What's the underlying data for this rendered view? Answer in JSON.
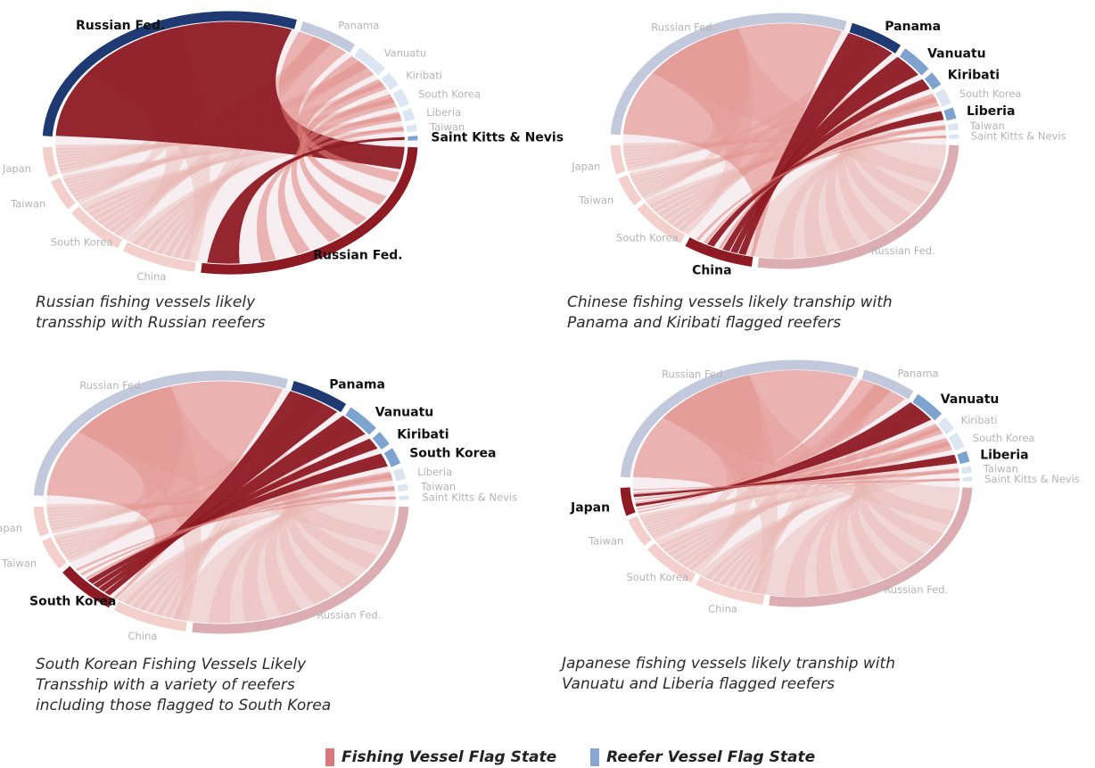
{
  "colors": {
    "fishing_active": "#8e1a24",
    "fishing_muted": "#dcaeb3",
    "reefer_active": "#1f3a73",
    "reefer_muted": "#c2c9dd",
    "reefer_small_active": "#7ea3cf",
    "reefer_small_muted": "#dbe6f2",
    "fishing_small_muted": "#f3d0cc",
    "label_active": "#111111",
    "label_muted": "#b4b4b4",
    "legend_fishing": "#d9777c",
    "legend_reefer": "#8aa6d3"
  },
  "chart_data": [
    {
      "type": "chord",
      "caption": "Russian fishing vessels likely\ntransship with Russian reefers",
      "reefer_flags": [
        "Russian Fed.",
        "Panama",
        "Vanuatu",
        "Kiribati",
        "South Korea",
        "Liberia",
        "Taiwan",
        "Saint Kitts & Nevis"
      ],
      "fishing_flags": [
        "Russian Fed.",
        "China",
        "South Korea",
        "Taiwan",
        "Japan"
      ],
      "highlighted_reefers": [
        "Russian Fed.",
        "Saint Kitts & Nevis"
      ],
      "highlighted_fishing": "Russian Fed."
    },
    {
      "type": "chord",
      "caption": "Chinese fishing vessels likely tranship with\nPanama and Kiribati flagged reefers",
      "reefer_flags": [
        "Russian Fed.",
        "Panama",
        "Vanuatu",
        "Kiribati",
        "South Korea",
        "Liberia",
        "Taiwan",
        "Saint Kitts & Nevis"
      ],
      "fishing_flags": [
        "Russian Fed.",
        "China",
        "South Korea",
        "Taiwan",
        "Japan"
      ],
      "highlighted_reefers": [
        "Panama",
        "Vanuatu",
        "Kiribati",
        "Liberia"
      ],
      "highlighted_fishing": "China"
    },
    {
      "type": "chord",
      "caption": "South Korean Fishing Vessels Likely\nTransship with a variety of reefers\nincluding those flagged to South Korea",
      "reefer_flags": [
        "Russian Fed.",
        "Panama",
        "Vanuatu",
        "Kiribati",
        "South Korea",
        "Liberia",
        "Taiwan",
        "Saint Kitts & Nevis"
      ],
      "fishing_flags": [
        "Russian Fed.",
        "China",
        "South Korea",
        "Taiwan",
        "Japan"
      ],
      "highlighted_reefers": [
        "Panama",
        "Vanuatu",
        "Kiribati",
        "South Korea"
      ],
      "highlighted_fishing": "South Korea"
    },
    {
      "type": "chord",
      "caption": "Japanese fishing vessels likely tranship with\nVanuatu and Liberia flagged reefers",
      "reefer_flags": [
        "Russian Fed.",
        "Panama",
        "Vanuatu",
        "Kiribati",
        "South Korea",
        "Liberia",
        "Taiwan",
        "Saint Kitts & Nevis"
      ],
      "fishing_flags": [
        "Russian Fed.",
        "China",
        "South Korea",
        "Taiwan",
        "Japan"
      ],
      "highlighted_reefers": [
        "Vanuatu",
        "Liberia"
      ],
      "highlighted_fishing": "Japan"
    }
  ],
  "legend": {
    "fishing_label": "Fishing Vessel Flag State",
    "reefer_label": "Reefer Vessel Flag State"
  }
}
